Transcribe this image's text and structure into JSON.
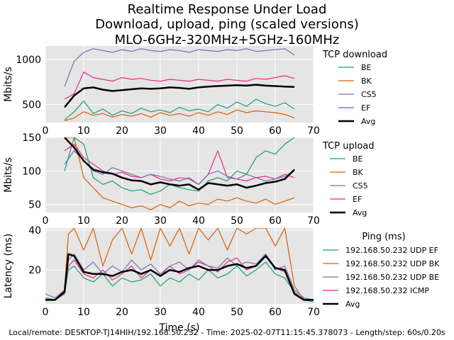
{
  "figure": {
    "title_lines": [
      "Realtime Response Under Load",
      "Download, upload, ping (scaled versions)",
      "MLO-6GHz-320MHz+5GHz-160MHz"
    ],
    "footer": "Local/remote: DESKTOP-TJ14HIH/192.168.50.232 - Time: 2025-02-07T11:15:45.378073 - Length/step: 60s/0.20s",
    "colors": {
      "panel_bg": "#e5e5e5",
      "grid": "#ffffff",
      "green": "#1b9e77",
      "orange": "#d95f02",
      "purple": "#7570b3",
      "pink": "#e7298a",
      "avg": "#000000"
    }
  },
  "chart_data": [
    {
      "type": "line",
      "id": "download",
      "ylabel": "Mbits/s",
      "xlabel": "",
      "xlim": [
        0,
        70
      ],
      "ylim": [
        300,
        1150
      ],
      "xticks": [
        0,
        10,
        20,
        30,
        40,
        50,
        60,
        70
      ],
      "yticks": [
        500,
        1000
      ],
      "legend_title": "TCP download",
      "legend_position": "right",
      "x": [
        5,
        7.5,
        10,
        12.5,
        15,
        17.5,
        20,
        22.5,
        25,
        27.5,
        30,
        32.5,
        35,
        37.5,
        40,
        42.5,
        45,
        47.5,
        50,
        52.5,
        55,
        57.5,
        60,
        62.5,
        65
      ],
      "series": [
        {
          "name": "BE",
          "color": "green",
          "values": [
            330,
            420,
            540,
            400,
            450,
            380,
            430,
            400,
            460,
            420,
            440,
            410,
            470,
            430,
            450,
            420,
            500,
            460,
            530,
            480,
            560,
            510,
            480,
            520,
            450
          ]
        },
        {
          "name": "BK",
          "color": "orange",
          "values": [
            320,
            350,
            420,
            380,
            400,
            360,
            390,
            370,
            400,
            360,
            410,
            380,
            400,
            370,
            410,
            380,
            420,
            390,
            440,
            410,
            430,
            420,
            410,
            390,
            350
          ]
        },
        {
          "name": "CS5",
          "color": "purple",
          "values": [
            700,
            980,
            1080,
            1120,
            1100,
            1080,
            1110,
            1090,
            1120,
            1100,
            1090,
            1110,
            1100,
            1080,
            1110,
            1100,
            1090,
            1110,
            1100,
            1120,
            1090,
            1100,
            1110,
            1120,
            1050
          ]
        },
        {
          "name": "EF",
          "color": "pink",
          "values": [
            560,
            620,
            860,
            800,
            780,
            760,
            800,
            780,
            790,
            770,
            760,
            780,
            770,
            760,
            780,
            770,
            760,
            780,
            770,
            760,
            790,
            780,
            800,
            820,
            790
          ]
        },
        {
          "name": "Avg",
          "color": "avg",
          "values": [
            470,
            600,
            680,
            690,
            665,
            650,
            660,
            670,
            680,
            675,
            680,
            690,
            685,
            675,
            690,
            700,
            705,
            710,
            715,
            710,
            720,
            710,
            705,
            700,
            695
          ]
        }
      ]
    },
    {
      "type": "line",
      "id": "upload",
      "ylabel": "Mbits/s",
      "xlabel": "",
      "xlim": [
        0,
        70
      ],
      "ylim": [
        38,
        150
      ],
      "xticks": [
        0,
        10,
        20,
        30,
        40,
        50,
        60,
        70
      ],
      "yticks": [
        50,
        100,
        150
      ],
      "legend_title": "TCP upload",
      "legend_position": "right",
      "x": [
        5,
        7.5,
        10,
        12.5,
        15,
        17.5,
        20,
        22.5,
        25,
        27.5,
        30,
        32.5,
        35,
        37.5,
        40,
        42.5,
        45,
        47.5,
        50,
        52.5,
        55,
        57.5,
        60,
        62.5,
        65
      ],
      "series": [
        {
          "name": "BE",
          "color": "green",
          "values": [
            100,
            150,
            140,
            90,
            80,
            85,
            75,
            70,
            72,
            65,
            70,
            80,
            75,
            72,
            70,
            85,
            90,
            85,
            100,
            95,
            120,
            130,
            125,
            140,
            150
          ]
        },
        {
          "name": "BK",
          "color": "orange",
          "values": [
            150,
            150,
            90,
            75,
            60,
            55,
            50,
            45,
            48,
            42,
            50,
            45,
            55,
            48,
            52,
            50,
            58,
            55,
            60,
            55,
            52,
            58,
            50,
            55,
            60
          ]
        },
        {
          "name": "CS5",
          "color": "purple",
          "values": [
            110,
            130,
            115,
            100,
            95,
            105,
            100,
            95,
            90,
            95,
            92,
            88,
            85,
            90,
            80,
            95,
            100,
            92,
            88,
            95,
            90,
            85,
            88,
            92,
            100
          ]
        },
        {
          "name": "EF",
          "color": "pink",
          "values": [
            130,
            140,
            120,
            110,
            100,
            95,
            98,
            92,
            90,
            95,
            88,
            85,
            90,
            88,
            80,
            95,
            130,
            90,
            88,
            85,
            90,
            92,
            88,
            95,
            90
          ]
        },
        {
          "name": "Avg",
          "color": "avg",
          "values": [
            150,
            135,
            115,
            102,
            98,
            96,
            90,
            86,
            85,
            80,
            83,
            80,
            78,
            80,
            72,
            82,
            80,
            78,
            80,
            75,
            78,
            82,
            84,
            88,
            102
          ]
        }
      ]
    },
    {
      "type": "line",
      "id": "ping",
      "ylabel": "Latency (ms)",
      "xlabel": "Time (s)",
      "xlim": [
        0,
        70
      ],
      "ylim": [
        3,
        41
      ],
      "xticks": [
        0,
        10,
        20,
        30,
        40,
        50,
        60,
        70
      ],
      "yticks": [
        20,
        40
      ],
      "legend_title": "Ping (ms)",
      "legend_position": "right",
      "x": [
        0,
        2.5,
        5,
        6,
        7.5,
        10,
        12.5,
        15,
        17.5,
        20,
        22.5,
        25,
        27.5,
        30,
        32.5,
        35,
        37.5,
        40,
        42.5,
        45,
        47.5,
        50,
        52.5,
        55,
        57.5,
        60,
        62.5,
        65,
        67.5,
        70
      ],
      "series": [
        {
          "name": "192.168.50.232 UDP EF",
          "color": "green",
          "values": [
            6,
            5,
            8,
            20,
            22,
            16,
            14,
            18,
            12,
            16,
            14,
            15,
            18,
            12,
            16,
            14,
            18,
            15,
            20,
            16,
            18,
            22,
            17,
            20,
            24,
            18,
            16,
            9,
            5,
            4
          ]
        },
        {
          "name": "192.168.50.232 UDP BK",
          "color": "orange",
          "values": [
            5,
            5,
            10,
            38,
            41,
            30,
            41,
            22,
            35,
            41,
            28,
            41,
            25,
            41,
            32,
            41,
            28,
            41,
            35,
            41,
            30,
            41,
            38,
            41,
            41,
            32,
            41,
            12,
            5,
            5
          ]
        },
        {
          "name": "192.168.50.232 UDP BE",
          "color": "purple",
          "values": [
            8,
            6,
            10,
            25,
            28,
            20,
            24,
            18,
            22,
            19,
            25,
            20,
            23,
            18,
            22,
            24,
            20,
            25,
            22,
            21,
            26,
            22,
            24,
            23,
            28,
            20,
            22,
            10,
            6,
            5
          ]
        },
        {
          "name": "192.168.50.232 ICMP",
          "color": "pink",
          "values": [
            5,
            5,
            8,
            22,
            25,
            18,
            16,
            20,
            15,
            18,
            22,
            16,
            20,
            17,
            22,
            18,
            20,
            24,
            22,
            19,
            24,
            26,
            20,
            22,
            28,
            21,
            19,
            8,
            5,
            5
          ]
        },
        {
          "name": "Avg",
          "color": "avg",
          "values": [
            5,
            5,
            9,
            28,
            27,
            19,
            18,
            18,
            17,
            19,
            20,
            18,
            20,
            17,
            20,
            19,
            21,
            22,
            20,
            20,
            22,
            23,
            21,
            22,
            27,
            21,
            20,
            8,
            5,
            5
          ]
        }
      ]
    }
  ]
}
